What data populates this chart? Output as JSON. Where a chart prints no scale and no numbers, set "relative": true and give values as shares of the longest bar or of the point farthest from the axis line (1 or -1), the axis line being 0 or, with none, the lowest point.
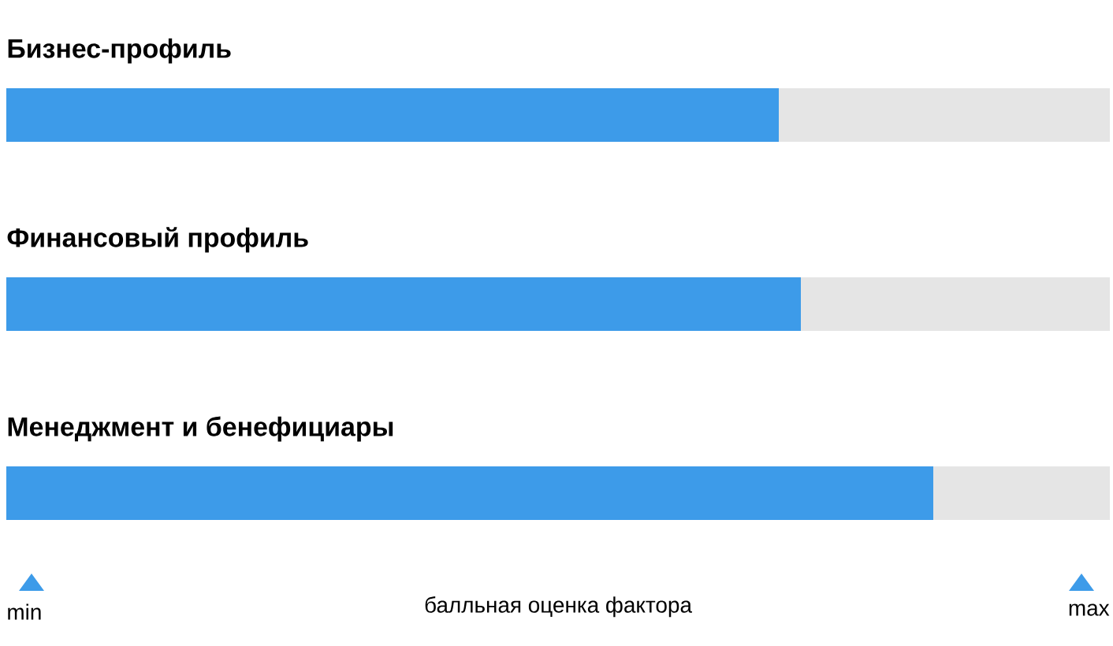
{
  "chart_data": {
    "type": "bar",
    "orientation": "horizontal",
    "stacked": true,
    "relative": true,
    "categories": [
      "Бизнес-профиль",
      "Финансовый профиль",
      "Менеджмент и бенефициары"
    ],
    "series": [
      {
        "color": "#3d9be9",
        "values": [
          0.7,
          0.72,
          0.84
        ]
      },
      {
        "color": "#e5e5e5",
        "values": [
          0.3,
          0.28,
          0.16
        ]
      }
    ],
    "xlabel": "балльная оценка фактора",
    "annotations": [
      "min",
      "max"
    ]
  }
}
